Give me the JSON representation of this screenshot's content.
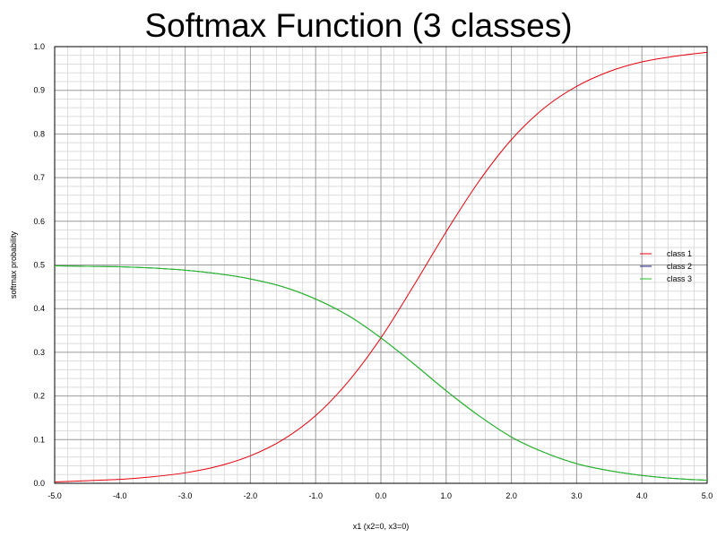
{
  "chart_data": {
    "type": "line",
    "title": "Softmax Function (3 classes)",
    "xlabel": "x1 (x2=0, x3=0)",
    "ylabel": "softmax probability",
    "xlim": [
      -5.0,
      5.0
    ],
    "ylim": [
      0.0,
      1.0
    ],
    "grid": true,
    "legend_placement": "right",
    "x_ticks": [
      "-5.0",
      "-4.0",
      "-3.0",
      "-2.0",
      "-1.0",
      "0.0",
      "1.0",
      "2.0",
      "3.0",
      "4.0",
      "5.0"
    ],
    "y_ticks": [
      "0.0",
      "0.1",
      "0.2",
      "0.3",
      "0.4",
      "0.5",
      "0.6",
      "0.7",
      "0.8",
      "0.9",
      "1.0"
    ],
    "x": [
      -5.0,
      -4.5,
      -4.0,
      -3.5,
      -3.0,
      -2.5,
      -2.0,
      -1.5,
      -1.0,
      -0.5,
      0.0,
      0.5,
      1.0,
      1.5,
      2.0,
      2.5,
      3.0,
      3.5,
      4.0,
      4.5,
      5.0
    ],
    "series": [
      {
        "name": "class 1",
        "color": "#e8000b",
        "values": [
          0.003,
          0.006,
          0.009,
          0.015,
          0.024,
          0.039,
          0.063,
          0.1,
          0.155,
          0.233,
          0.333,
          0.452,
          0.576,
          0.691,
          0.787,
          0.859,
          0.909,
          0.943,
          0.965,
          0.978,
          0.987
        ]
      },
      {
        "name": "class 2",
        "color": "#1a1a8c",
        "values": [
          0.498,
          0.497,
          0.496,
          0.493,
          0.488,
          0.48,
          0.468,
          0.45,
          0.422,
          0.384,
          0.333,
          0.274,
          0.212,
          0.155,
          0.106,
          0.071,
          0.045,
          0.029,
          0.018,
          0.011,
          0.007
        ]
      },
      {
        "name": "class 3",
        "color": "#22c41a",
        "values": [
          0.498,
          0.497,
          0.496,
          0.493,
          0.488,
          0.48,
          0.468,
          0.45,
          0.422,
          0.384,
          0.333,
          0.274,
          0.212,
          0.155,
          0.106,
          0.071,
          0.045,
          0.029,
          0.018,
          0.011,
          0.007
        ]
      }
    ]
  }
}
